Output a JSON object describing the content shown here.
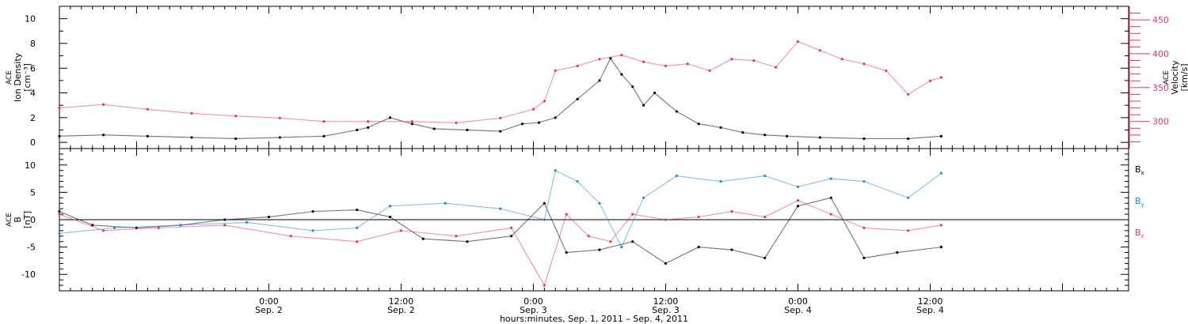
{
  "colors": {
    "black": "#000000",
    "pink": "#e8336a",
    "blue": "#1e88e5"
  },
  "panel1": {
    "left_label_lines": [
      "ACE",
      "Ion Density",
      "[cm⁻³]"
    ],
    "right_label_lines": [
      "ACE",
      "Velocity",
      "[km/s]"
    ]
  },
  "panel2": {
    "left_label_lines": [
      "ACE",
      "B",
      "[nT]"
    ],
    "legend": [
      {
        "label": "Bx",
        "sub": "x",
        "color": "#000000"
      },
      {
        "label": "By",
        "sub": "y",
        "color": "#1e88e5"
      },
      {
        "label": "Bz",
        "sub": "z",
        "color": "#e8336a"
      }
    ]
  },
  "xaxis": {
    "title": "hours:minutes, Sep.  1, 2011 – Sep.  4, 2011",
    "ticks": [
      {
        "time": "0:00",
        "date": "Sep. 2"
      },
      {
        "time": "12:00",
        "date": "Sep. 2"
      },
      {
        "time": "0:00",
        "date": "Sep. 3"
      },
      {
        "time": "12:00",
        "date": "Sep. 3"
      },
      {
        "time": "0:00",
        "date": "Sep. 4"
      },
      {
        "time": "12:00",
        "date": "Sep. 4"
      }
    ]
  },
  "chart_data": [
    {
      "type": "scatter",
      "title": "",
      "xlabel": "hours:minutes, Sep.  1, 2011 – Sep.  4, 2011",
      "xlim": [
        "2011-09-01T05:00",
        "2011-09-05T06:00"
      ],
      "xticks": [
        "2011-09-02T00:00",
        "2011-09-02T12:00",
        "2011-09-03T00:00",
        "2011-09-03T12:00",
        "2011-09-04T00:00",
        "2011-09-04T12:00"
      ],
      "y_left": {
        "label": "ACE Ion Density [cm⁻³]",
        "lim": [
          -0.5,
          11
        ],
        "ticks": [
          0,
          2,
          4,
          6,
          8,
          10
        ]
      },
      "y_right": {
        "label": "ACE Velocity [km/s]",
        "lim": [
          260,
          470
        ],
        "ticks": [
          300,
          350,
          400,
          450
        ]
      },
      "series": [
        {
          "name": "",
          "axis": "left",
          "color": "#000000",
          "points": [
            [
              "2011-09-01T05:00",
              0.5
            ],
            [
              "2011-09-01T09:00",
              0.6
            ],
            [
              "2011-09-01T13:00",
              0.5
            ],
            [
              "2011-09-01T17:00",
              0.4
            ],
            [
              "2011-09-01T21:00",
              0.3
            ],
            [
              "2011-09-02T01:00",
              0.4
            ],
            [
              "2011-09-02T05:00",
              0.5
            ],
            [
              "2011-09-02T08:00",
              1.0
            ],
            [
              "2011-09-02T09:00",
              1.2
            ],
            [
              "2011-09-02T11:00",
              2.0
            ],
            [
              "2011-09-02T13:00",
              1.5
            ],
            [
              "2011-09-02T15:00",
              1.1
            ],
            [
              "2011-09-02T18:00",
              1.0
            ],
            [
              "2011-09-02T21:00",
              0.9
            ],
            [
              "2011-09-02T23:00",
              1.5
            ],
            [
              "2011-09-03T00:30",
              1.6
            ],
            [
              "2011-09-03T02:00",
              2.0
            ],
            [
              "2011-09-03T04:00",
              3.5
            ],
            [
              "2011-09-03T06:00",
              5.0
            ],
            [
              "2011-09-03T07:00",
              6.8
            ],
            [
              "2011-09-03T08:00",
              5.5
            ],
            [
              "2011-09-03T09:00",
              4.5
            ],
            [
              "2011-09-03T10:00",
              3.0
            ],
            [
              "2011-09-03T11:00",
              4.0
            ],
            [
              "2011-09-03T13:00",
              2.5
            ],
            [
              "2011-09-03T15:00",
              1.5
            ],
            [
              "2011-09-03T17:00",
              1.2
            ],
            [
              "2011-09-03T19:00",
              0.8
            ],
            [
              "2011-09-03T21:00",
              0.6
            ],
            [
              "2011-09-03T23:00",
              0.5
            ],
            [
              "2011-09-04T02:00",
              0.4
            ],
            [
              "2011-09-04T06:00",
              0.3
            ],
            [
              "2011-09-04T10:00",
              0.3
            ],
            [
              "2011-09-04T13:00",
              0.5
            ]
          ]
        },
        {
          "name": "",
          "axis": "right",
          "color": "#e8336a",
          "points": [
            [
              "2011-09-01T05:00",
              320
            ],
            [
              "2011-09-01T09:00",
              325
            ],
            [
              "2011-09-01T13:00",
              318
            ],
            [
              "2011-09-01T17:00",
              312
            ],
            [
              "2011-09-01T21:00",
              308
            ],
            [
              "2011-09-02T01:00",
              305
            ],
            [
              "2011-09-02T05:00",
              300
            ],
            [
              "2011-09-02T09:00",
              300
            ],
            [
              "2011-09-02T13:00",
              300
            ],
            [
              "2011-09-02T17:00",
              298
            ],
            [
              "2011-09-02T21:00",
              305
            ],
            [
              "2011-09-03T00:00",
              318
            ],
            [
              "2011-09-03T01:00",
              330
            ],
            [
              "2011-09-03T02:00",
              375
            ],
            [
              "2011-09-03T04:00",
              382
            ],
            [
              "2011-09-03T06:00",
              392
            ],
            [
              "2011-09-03T08:00",
              398
            ],
            [
              "2011-09-03T10:00",
              388
            ],
            [
              "2011-09-03T12:00",
              382
            ],
            [
              "2011-09-03T14:00",
              385
            ],
            [
              "2011-09-03T16:00",
              375
            ],
            [
              "2011-09-03T18:00",
              392
            ],
            [
              "2011-09-03T20:00",
              390
            ],
            [
              "2011-09-03T22:00",
              380
            ],
            [
              "2011-09-04T00:00",
              418
            ],
            [
              "2011-09-04T02:00",
              405
            ],
            [
              "2011-09-04T04:00",
              392
            ],
            [
              "2011-09-04T06:00",
              385
            ],
            [
              "2011-09-04T08:00",
              375
            ],
            [
              "2011-09-04T10:00",
              340
            ],
            [
              "2011-09-04T12:00",
              360
            ],
            [
              "2011-09-04T13:00",
              365
            ]
          ]
        }
      ]
    },
    {
      "type": "scatter",
      "title": "",
      "xlabel": "hours:minutes, Sep.  1, 2011 – Sep.  4, 2011",
      "xlim": [
        "2011-09-01T05:00",
        "2011-09-05T06:00"
      ],
      "y": {
        "label": "ACE B [nT]",
        "lim": [
          -13,
          13
        ],
        "ticks": [
          -10,
          -5,
          0,
          5,
          10
        ]
      },
      "series": [
        {
          "name": "Bx",
          "color": "#000000",
          "points": [
            [
              "2011-09-01T05:00",
              1.5
            ],
            [
              "2011-09-01T08:00",
              -1.0
            ],
            [
              "2011-09-01T12:00",
              -1.5
            ],
            [
              "2011-09-01T16:00",
              -1.0
            ],
            [
              "2011-09-01T20:00",
              0.0
            ],
            [
              "2011-09-02T00:00",
              0.5
            ],
            [
              "2011-09-02T04:00",
              1.5
            ],
            [
              "2011-09-02T08:00",
              1.8
            ],
            [
              "2011-09-02T11:00",
              0.5
            ],
            [
              "2011-09-02T14:00",
              -3.5
            ],
            [
              "2011-09-02T18:00",
              -4.0
            ],
            [
              "2011-09-02T22:00",
              -3.0
            ],
            [
              "2011-09-03T01:00",
              3.0
            ],
            [
              "2011-09-03T03:00",
              -6.0
            ],
            [
              "2011-09-03T06:00",
              -5.5
            ],
            [
              "2011-09-03T09:00",
              -4.0
            ],
            [
              "2011-09-03T12:00",
              -8.0
            ],
            [
              "2011-09-03T15:00",
              -5.0
            ],
            [
              "2011-09-03T18:00",
              -5.5
            ],
            [
              "2011-09-03T21:00",
              -7.0
            ],
            [
              "2011-09-04T00:00",
              2.5
            ],
            [
              "2011-09-04T03:00",
              4.0
            ],
            [
              "2011-09-04T06:00",
              -7.0
            ],
            [
              "2011-09-04T09:00",
              -6.0
            ],
            [
              "2011-09-04T13:00",
              -5.0
            ]
          ]
        },
        {
          "name": "By",
          "color": "#1e88e5",
          "points": [
            [
              "2011-09-01T05:00",
              -2.5
            ],
            [
              "2011-09-01T10:00",
              -1.5
            ],
            [
              "2011-09-01T16:00",
              -1.0
            ],
            [
              "2011-09-01T22:00",
              -0.5
            ],
            [
              "2011-09-02T04:00",
              -2.0
            ],
            [
              "2011-09-02T08:00",
              -1.5
            ],
            [
              "2011-09-02T11:00",
              2.5
            ],
            [
              "2011-09-02T16:00",
              3.0
            ],
            [
              "2011-09-02T21:00",
              2.0
            ],
            [
              "2011-09-03T01:00",
              0.0
            ],
            [
              "2011-09-03T02:00",
              9.0
            ],
            [
              "2011-09-03T04:00",
              7.0
            ],
            [
              "2011-09-03T06:00",
              3.0
            ],
            [
              "2011-09-03T08:00",
              -5.0
            ],
            [
              "2011-09-03T10:00",
              4.0
            ],
            [
              "2011-09-03T13:00",
              8.0
            ],
            [
              "2011-09-03T17:00",
              7.0
            ],
            [
              "2011-09-03T21:00",
              8.0
            ],
            [
              "2011-09-04T00:00",
              6.0
            ],
            [
              "2011-09-04T03:00",
              7.5
            ],
            [
              "2011-09-04T06:00",
              7.0
            ],
            [
              "2011-09-04T10:00",
              4.0
            ],
            [
              "2011-09-04T13:00",
              8.5
            ]
          ]
        },
        {
          "name": "Bz",
          "color": "#e8336a",
          "points": [
            [
              "2011-09-01T05:00",
              1.0
            ],
            [
              "2011-09-01T09:00",
              -2.0
            ],
            [
              "2011-09-01T14:00",
              -1.5
            ],
            [
              "2011-09-01T20:00",
              -1.0
            ],
            [
              "2011-09-02T02:00",
              -3.0
            ],
            [
              "2011-09-02T08:00",
              -4.0
            ],
            [
              "2011-09-02T12:00",
              -2.0
            ],
            [
              "2011-09-02T17:00",
              -3.0
            ],
            [
              "2011-09-02T22:00",
              -1.5
            ],
            [
              "2011-09-03T01:00",
              -12.0
            ],
            [
              "2011-09-03T03:00",
              1.0
            ],
            [
              "2011-09-03T05:00",
              -3.0
            ],
            [
              "2011-09-03T07:00",
              -4.0
            ],
            [
              "2011-09-03T09:00",
              1.0
            ],
            [
              "2011-09-03T12:00",
              0.0
            ],
            [
              "2011-09-03T15:00",
              0.5
            ],
            [
              "2011-09-03T18:00",
              1.5
            ],
            [
              "2011-09-03T21:00",
              0.5
            ],
            [
              "2011-09-04T00:00",
              3.5
            ],
            [
              "2011-09-04T03:00",
              1.0
            ],
            [
              "2011-09-04T06:00",
              -1.5
            ],
            [
              "2011-09-04T10:00",
              -2.0
            ],
            [
              "2011-09-04T13:00",
              -1.0
            ]
          ]
        }
      ]
    }
  ]
}
